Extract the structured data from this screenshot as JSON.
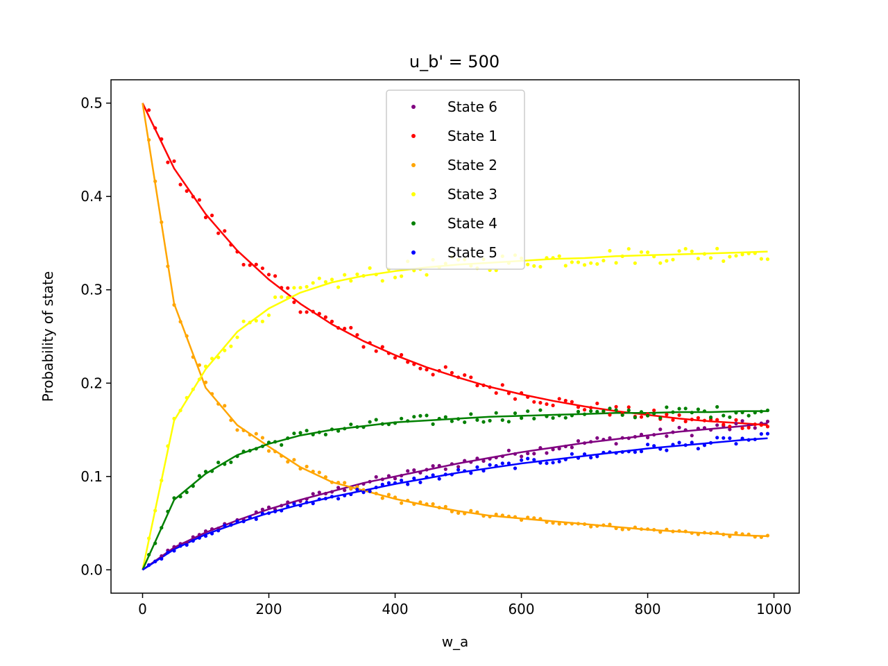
{
  "chart_data": {
    "type": "scatter",
    "title": "u_b' = 500",
    "xlabel": "w_a",
    "ylabel": "Probability of state",
    "xlim": [
      -50,
      1040
    ],
    "ylim": [
      -0.025,
      0.525
    ],
    "xticks": [
      0,
      200,
      400,
      600,
      800,
      1000
    ],
    "yticks": [
      0.0,
      0.1,
      0.2,
      0.3,
      0.4,
      0.5
    ],
    "grid": false,
    "legend_position": "top-center",
    "x": [
      0,
      50,
      100,
      150,
      200,
      250,
      300,
      350,
      400,
      450,
      500,
      550,
      600,
      650,
      700,
      750,
      800,
      850,
      900,
      950,
      990
    ],
    "series": [
      {
        "name": "State 6",
        "color": "#800080",
        "values": [
          0.0,
          0.024,
          0.04,
          0.053,
          0.065,
          0.075,
          0.084,
          0.093,
          0.1,
          0.107,
          0.114,
          0.12,
          0.126,
          0.131,
          0.136,
          0.14,
          0.144,
          0.148,
          0.151,
          0.154,
          0.157
        ]
      },
      {
        "name": "State 1",
        "color": "#ff0000",
        "values": [
          0.5,
          0.43,
          0.381,
          0.342,
          0.311,
          0.285,
          0.263,
          0.245,
          0.23,
          0.217,
          0.206,
          0.196,
          0.188,
          0.181,
          0.175,
          0.17,
          0.166,
          0.162,
          0.159,
          0.157,
          0.155
        ]
      },
      {
        "name": "State 2",
        "color": "#ffa500",
        "values": [
          0.5,
          0.285,
          0.195,
          0.155,
          0.132,
          0.11,
          0.094,
          0.085,
          0.076,
          0.069,
          0.063,
          0.058,
          0.055,
          0.052,
          0.049,
          0.046,
          0.043,
          0.041,
          0.039,
          0.037,
          0.036
        ]
      },
      {
        "name": "State 3",
        "color": "#ffff00",
        "values": [
          0.0,
          0.16,
          0.215,
          0.255,
          0.28,
          0.297,
          0.308,
          0.315,
          0.32,
          0.324,
          0.327,
          0.329,
          0.331,
          0.333,
          0.334,
          0.336,
          0.337,
          0.338,
          0.339,
          0.34,
          0.341
        ]
      },
      {
        "name": "State 4",
        "color": "#008000",
        "values": [
          0.0,
          0.075,
          0.103,
          0.123,
          0.135,
          0.144,
          0.15,
          0.154,
          0.158,
          0.16,
          0.162,
          0.164,
          0.165,
          0.166,
          0.167,
          0.168,
          0.168,
          0.169,
          0.169,
          0.17,
          0.17
        ]
      },
      {
        "name": "State 5",
        "color": "#0000ff",
        "values": [
          0.0,
          0.022,
          0.038,
          0.05,
          0.061,
          0.07,
          0.078,
          0.085,
          0.092,
          0.098,
          0.104,
          0.109,
          0.114,
          0.118,
          0.122,
          0.126,
          0.13,
          0.133,
          0.136,
          0.139,
          0.141
        ]
      }
    ]
  }
}
